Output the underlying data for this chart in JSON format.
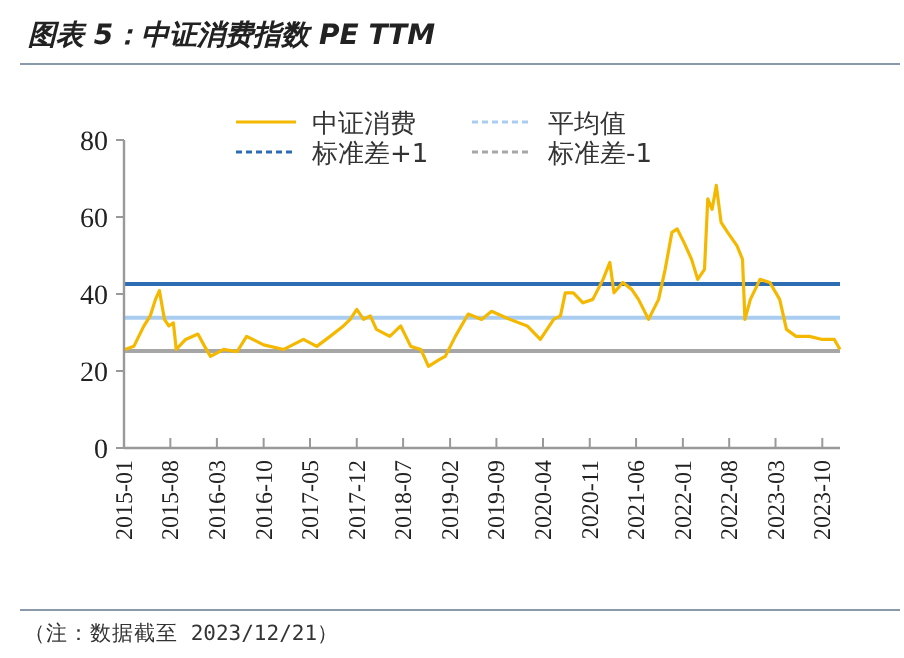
{
  "chart_data": {
    "type": "line",
    "title": "图表 5：中证消费指数 PE TTM",
    "x": [
      "2015-01-05",
      "2015-02-15",
      "2015-04-01",
      "2015-05-01",
      "2015-05-25",
      "2015-06-12",
      "2015-07-05",
      "2015-07-25",
      "2015-08-15",
      "2015-08-28",
      "2015-10-10",
      "2015-12-05",
      "2016-01-05",
      "2016-02-01",
      "2016-04-01",
      "2016-06-01",
      "2016-07-15",
      "2016-10-01",
      "2017-01-01",
      "2017-04-01",
      "2017-06-01",
      "2017-08-01",
      "2017-10-01",
      "2017-11-01",
      "2017-12-01",
      "2018-01-01",
      "2018-02-01",
      "2018-03-01",
      "2018-05-01",
      "2018-06-20",
      "2018-08-05",
      "2018-09-20",
      "2018-10-25",
      "2018-12-15",
      "2019-01-10",
      "2019-02-25",
      "2019-04-25",
      "2019-06-25",
      "2019-08-10",
      "2019-10-20",
      "2020-01-20",
      "2020-03-20",
      "2020-05-20",
      "2020-06-20",
      "2020-07-12",
      "2020-08-18",
      "2020-10-01",
      "2020-11-15",
      "2021-01-01",
      "2021-02-01",
      "2021-02-20",
      "2021-04-01",
      "2021-05-12",
      "2021-06-12",
      "2021-07-28",
      "2021-09-12",
      "2021-10-12",
      "2021-11-12",
      "2021-12-06",
      "2022-01-06",
      "2022-02-10",
      "2022-03-10",
      "2022-04-10",
      "2022-04-25",
      "2022-05-15",
      "2022-06-03",
      "2022-06-25",
      "2022-07-25",
      "2022-09-06",
      "2022-10-01",
      "2022-10-12",
      "2022-11-06",
      "2022-12-20",
      "2023-02-03",
      "2023-03-20",
      "2023-04-20",
      "2023-06-03",
      "2023-08-03",
      "2023-10-01",
      "2023-11-25",
      "2023-12-21"
    ],
    "series": [
      {
        "name": "中证消费",
        "color": "#f5b800",
        "values": [
          25.6,
          26.4,
          31.6,
          34.3,
          38.6,
          40.9,
          33.4,
          31.7,
          32.5,
          25.6,
          28.2,
          29.6,
          26.4,
          23.8,
          25.6,
          25.0,
          29.0,
          26.8,
          25.6,
          28.2,
          26.4,
          29.0,
          31.7,
          33.4,
          36.0,
          33.4,
          34.3,
          30.8,
          29.0,
          31.7,
          26.4,
          25.6,
          21.2,
          23.0,
          23.8,
          29.0,
          34.8,
          33.4,
          35.5,
          33.7,
          31.7,
          28.2,
          33.4,
          34.3,
          40.3,
          40.3,
          37.7,
          38.6,
          43.8,
          48.2,
          40.3,
          43.0,
          41.2,
          38.6,
          33.4,
          38.6,
          46.4,
          56.0,
          56.9,
          53.4,
          49.0,
          43.8,
          46.4,
          64.7,
          62.0,
          68.2,
          58.6,
          56.0,
          52.5,
          49.0,
          33.4,
          38.6,
          43.8,
          43.0,
          38.6,
          30.8,
          29.0,
          29.0,
          28.2,
          28.2,
          25.6
        ]
      }
    ],
    "ref_lines": [
      {
        "axis": "y",
        "value": 33.8,
        "label": "平均值",
        "color": "#a9cdf0",
        "line_style": "solid"
      },
      {
        "axis": "y",
        "value": 42.6,
        "label": "标准差+1",
        "color": "#2e6db4",
        "line_style": "solid"
      },
      {
        "axis": "y",
        "value": 25.2,
        "label": "标准差-1",
        "color": "#a6a6a6",
        "line_style": "solid"
      }
    ],
    "xlim": [
      "2015-01-01",
      "2023-12-21"
    ],
    "xticks": [
      "2015-01",
      "2015-08",
      "2016-03",
      "2016-10",
      "2017-05",
      "2017-12",
      "2018-07",
      "2019-02",
      "2019-09",
      "2020-04",
      "2020-11",
      "2021-06",
      "2022-01",
      "2022-08",
      "2023-03",
      "2023-10"
    ],
    "ylim": [
      0,
      80
    ],
    "yticks": [
      0,
      20,
      40,
      60,
      80
    ],
    "grid": false,
    "legend": "top",
    "annotations": [
      "（注：数据截至 2023/12/21）"
    ]
  }
}
